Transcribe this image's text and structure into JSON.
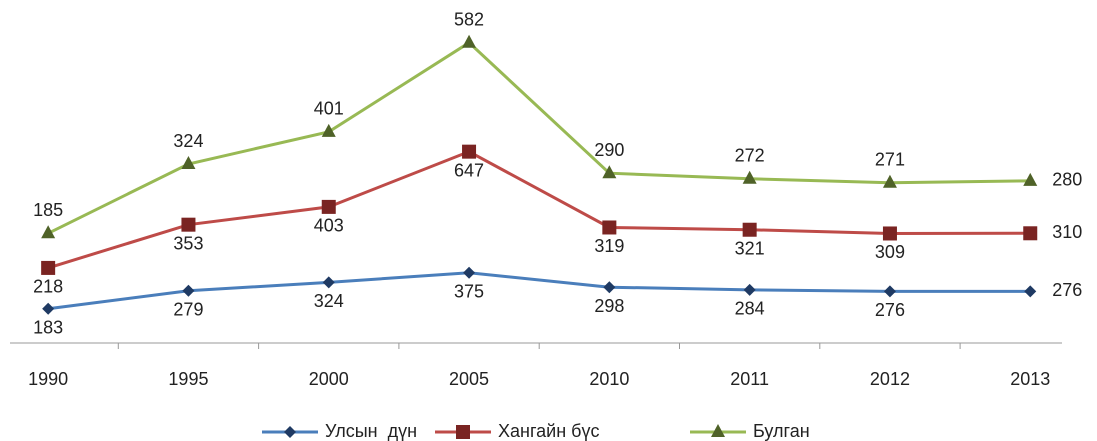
{
  "chart_data": {
    "type": "line",
    "stacked": true,
    "categories": [
      "1990",
      "1995",
      "2000",
      "2005",
      "2010",
      "2011",
      "2012",
      "2013"
    ],
    "ylim": [
      0,
      1800
    ],
    "legend": "bottom",
    "series": [
      {
        "name": "Улсын  дүн",
        "color": "#4a7ebb",
        "marker": "diamond",
        "values": [
          183,
          279,
          324,
          375,
          298,
          284,
          276,
          276
        ]
      },
      {
        "name": "Хангайн бүс",
        "color": "#be4b48",
        "marker": "square",
        "values": [
          218,
          353,
          403,
          647,
          319,
          321,
          309,
          310
        ]
      },
      {
        "name": "Булган",
        "color": "#98b954",
        "marker": "triangle",
        "values": [
          185,
          324,
          401,
          582,
          290,
          272,
          271,
          280
        ]
      }
    ]
  }
}
